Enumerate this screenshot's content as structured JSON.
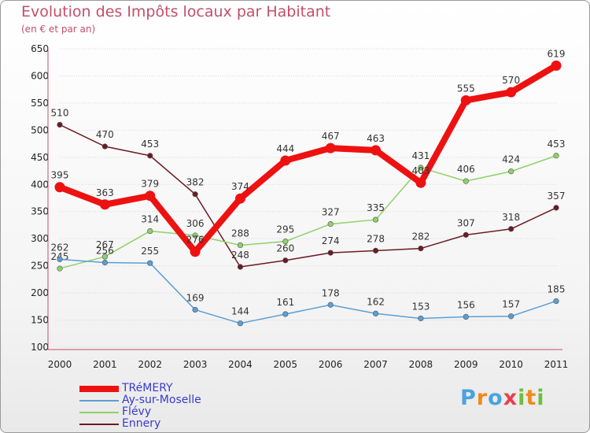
{
  "chart_data": {
    "type": "line",
    "title": "Evolution des Impôts locaux par Habitant",
    "subtitle": "(en € et par an)",
    "xlabel": "",
    "ylabel": "",
    "ylim": [
      100,
      650
    ],
    "yticks": [
      100,
      150,
      200,
      250,
      300,
      350,
      400,
      450,
      500,
      550,
      600,
      650
    ],
    "categories": [
      "2000",
      "2001",
      "2002",
      "2003",
      "2004",
      "2005",
      "2006",
      "2007",
      "2008",
      "2009",
      "2010",
      "2011"
    ],
    "series": [
      {
        "name": "Ennery",
        "color": "#6b1b24",
        "values": [
          510,
          470,
          453,
          382,
          248,
          260,
          274,
          278,
          282,
          307,
          318,
          357
        ]
      },
      {
        "name": "Flévy",
        "color": "#8fd16a",
        "values": [
          245,
          267,
          314,
          306,
          288,
          295,
          327,
          335,
          431,
          406,
          424,
          453
        ]
      },
      {
        "name": "Ay-sur-Moselle",
        "color": "#5a9fd6",
        "values": [
          262,
          256,
          255,
          169,
          144,
          161,
          178,
          162,
          153,
          156,
          157,
          185
        ]
      },
      {
        "name": "TRéMERY",
        "color": "#ee1111",
        "values": [
          395,
          363,
          379,
          276,
          374,
          444,
          467,
          463,
          403,
          555,
          570,
          619
        ]
      }
    ]
  },
  "legend": {
    "items": [
      {
        "name": "TRéMERY",
        "color": "#ee1111"
      },
      {
        "name": "Ay-sur-Moselle",
        "color": "#5a9fd6"
      },
      {
        "name": "Flévy",
        "color": "#8fd16a"
      },
      {
        "name": "Ennery",
        "color": "#6b1b24"
      }
    ]
  },
  "brand": {
    "name": "Proxiti",
    "letters": [
      "P",
      "r",
      "o",
      "x",
      "i",
      "t",
      "i"
    ],
    "colors": [
      "#4aa3df",
      "#f08a1c",
      "#4aa3df",
      "#e8404c",
      "#6cbf3c",
      "#f08a1c",
      "#6cbf3c"
    ]
  }
}
